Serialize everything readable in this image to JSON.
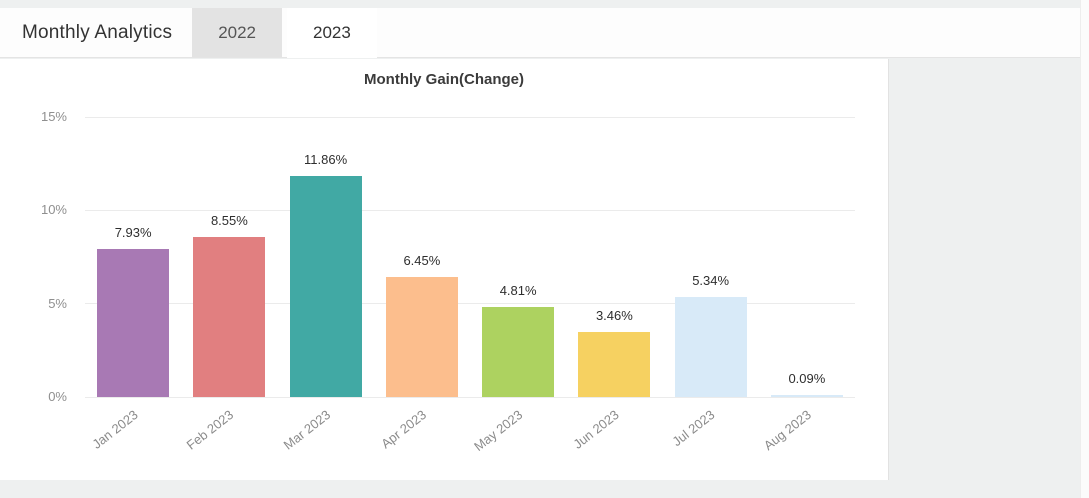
{
  "header": {
    "title": "Monthly Analytics",
    "tabs": [
      {
        "label": "2022",
        "active": false
      },
      {
        "label": "2023",
        "active": true
      }
    ]
  },
  "chart_data": {
    "type": "bar",
    "title": "Monthly Gain(Change)",
    "categories": [
      "Jan 2023",
      "Feb 2023",
      "Mar 2023",
      "Apr 2023",
      "May 2023",
      "Jun 2023",
      "Jul 2023",
      "Aug 2023"
    ],
    "values": [
      7.93,
      8.55,
      11.86,
      6.45,
      4.81,
      3.46,
      5.34,
      0.09
    ],
    "data_labels": [
      "7.93%",
      "8.55%",
      "11.86%",
      "6.45%",
      "4.81%",
      "3.46%",
      "5.34%",
      "0.09%"
    ],
    "bar_colors": [
      "#a879b4",
      "#e17f80",
      "#41a9a4",
      "#fcbe8d",
      "#add260",
      "#f6d161",
      "#d8eaf8",
      "#d8eaf8"
    ],
    "xlabel": "",
    "ylabel": "",
    "ylim": [
      0,
      15
    ],
    "yticks": [
      "0%",
      "5%",
      "10%",
      "15%"
    ],
    "ytick_values": [
      0,
      5,
      10,
      15
    ],
    "grid": true,
    "legend": "none"
  }
}
